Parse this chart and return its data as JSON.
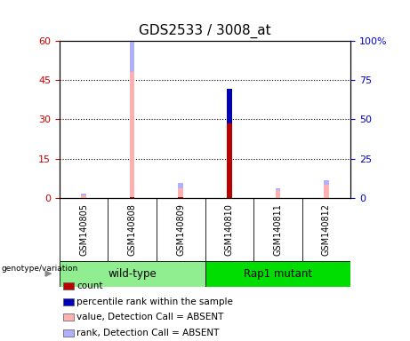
{
  "title": "GDS2533 / 3008_at",
  "samples": [
    "GSM140805",
    "GSM140808",
    "GSM140809",
    "GSM140810",
    "GSM140811",
    "GSM140812"
  ],
  "group_label": "genotype/variation",
  "group_ranges": [
    {
      "label": "wild-type",
      "start": 0,
      "end": 2,
      "color": "#90EE90"
    },
    {
      "label": "Rap1 mutant",
      "start": 3,
      "end": 5,
      "color": "#00DD00"
    }
  ],
  "ylim_left": [
    0,
    60
  ],
  "ylim_right": [
    0,
    100
  ],
  "yticks_left": [
    0,
    15,
    30,
    45,
    60
  ],
  "ytick_labels_left": [
    "0",
    "15",
    "30",
    "45",
    "60"
  ],
  "yticks_right": [
    0,
    25,
    50,
    75,
    100
  ],
  "ytick_labels_right": [
    "0",
    "25",
    "50",
    "75",
    "100%"
  ],
  "colors": {
    "count": "#BB0000",
    "percentile_rank": "#0000BB",
    "value_absent": "#FFB0B0",
    "rank_absent": "#B0B0FF"
  },
  "data": {
    "GSM140805": {
      "count": 0,
      "percentile_rank": 0,
      "value_absent": 0.8,
      "rank_absent": 0.9
    },
    "GSM140808": {
      "count": 0.4,
      "percentile_rank": 0,
      "value_absent": 48.0,
      "rank_absent": 13.5
    },
    "GSM140809": {
      "count": 0.4,
      "percentile_rank": 0,
      "value_absent": 3.8,
      "rank_absent": 1.8
    },
    "GSM140810": {
      "count": 28.5,
      "percentile_rank": 13.2,
      "value_absent": 0.4,
      "rank_absent": 0.4
    },
    "GSM140811": {
      "count": 0,
      "percentile_rank": 0,
      "value_absent": 2.8,
      "rank_absent": 1.0
    },
    "GSM140812": {
      "count": 0,
      "percentile_rank": 0,
      "value_absent": 5.0,
      "rank_absent": 1.8
    }
  },
  "legend": [
    {
      "label": "count",
      "color": "#BB0000"
    },
    {
      "label": "percentile rank within the sample",
      "color": "#0000BB"
    },
    {
      "label": "value, Detection Call = ABSENT",
      "color": "#FFB0B0"
    },
    {
      "label": "rank, Detection Call = ABSENT",
      "color": "#B0B0FF"
    }
  ],
  "cell_bg": "#C8C8C8",
  "plot_bg": "#FFFFFF",
  "tick_color_left": "#CC0000",
  "tick_color_right": "#0000CC"
}
